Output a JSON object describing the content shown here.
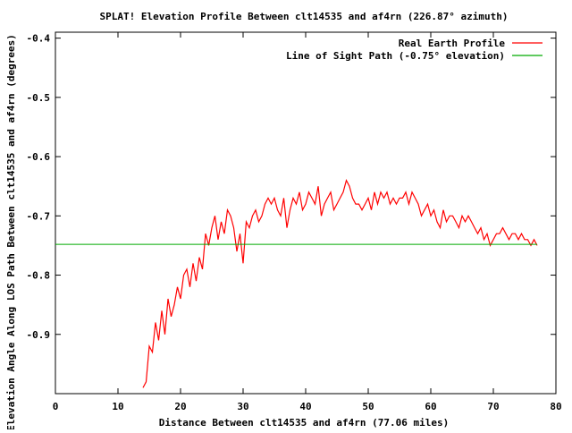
{
  "chart_data": {
    "type": "line",
    "title": "SPLAT! Elevation Profile Between clt14535 and af4rn (226.87° azimuth)",
    "xlabel": "Distance Between clt14535 and af4rn (77.06 miles)",
    "ylabel": "Elevation Angle Along LOS Path Between clt14535 and af4rn (degrees)",
    "xlim": [
      0,
      80
    ],
    "ylim": [
      -1.0,
      -0.39
    ],
    "grid": true,
    "legend_position": "top-right",
    "x_ticks": [
      "0",
      "10",
      "20",
      "30",
      "40",
      "50",
      "60",
      "70",
      "80"
    ],
    "y_ticks": [
      "-0.4",
      "-0.5",
      "-0.6",
      "-0.7",
      "-0.8",
      "-0.9"
    ],
    "y_tick_values": [
      -0.4,
      -0.5,
      -0.6,
      -0.7,
      -0.8,
      -0.9
    ],
    "series": [
      {
        "name": "Real Earth Profile",
        "color": "#ff0000",
        "x": [
          14.0,
          14.5,
          15.0,
          15.5,
          16.0,
          16.5,
          17.0,
          17.5,
          18.0,
          18.5,
          19.0,
          19.5,
          20.0,
          20.5,
          21.0,
          21.5,
          22.0,
          22.5,
          23.0,
          23.5,
          24.0,
          24.5,
          25.0,
          25.5,
          26.0,
          26.5,
          27.0,
          27.5,
          28.0,
          28.5,
          29.0,
          29.5,
          30.0,
          30.5,
          31.0,
          31.5,
          32.0,
          32.5,
          33.0,
          33.5,
          34.0,
          34.5,
          35.0,
          35.5,
          36.0,
          36.5,
          37.0,
          37.5,
          38.0,
          38.5,
          39.0,
          39.5,
          40.0,
          40.5,
          41.0,
          41.5,
          42.0,
          42.5,
          43.0,
          43.5,
          44.0,
          44.5,
          45.0,
          45.5,
          46.0,
          46.5,
          47.0,
          47.5,
          48.0,
          48.5,
          49.0,
          49.5,
          50.0,
          50.5,
          51.0,
          51.5,
          52.0,
          52.5,
          53.0,
          53.5,
          54.0,
          54.5,
          55.0,
          55.5,
          56.0,
          56.5,
          57.0,
          57.5,
          58.0,
          58.5,
          59.0,
          59.5,
          60.0,
          60.5,
          61.0,
          61.5,
          62.0,
          62.5,
          63.0,
          63.5,
          64.0,
          64.5,
          65.0,
          65.5,
          66.0,
          66.5,
          67.0,
          67.5,
          68.0,
          68.5,
          69.0,
          69.5,
          70.0,
          70.5,
          71.0,
          71.5,
          72.0,
          72.5,
          73.0,
          73.5,
          74.0,
          74.5,
          75.0,
          75.5,
          76.0,
          76.5,
          77.0
        ],
        "values": [
          -0.99,
          -0.98,
          -0.92,
          -0.93,
          -0.88,
          -0.91,
          -0.86,
          -0.9,
          -0.84,
          -0.87,
          -0.85,
          -0.82,
          -0.84,
          -0.8,
          -0.79,
          -0.82,
          -0.78,
          -0.81,
          -0.77,
          -0.79,
          -0.73,
          -0.75,
          -0.72,
          -0.7,
          -0.74,
          -0.71,
          -0.73,
          -0.69,
          -0.7,
          -0.72,
          -0.76,
          -0.73,
          -0.78,
          -0.71,
          -0.72,
          -0.7,
          -0.69,
          -0.71,
          -0.7,
          -0.68,
          -0.67,
          -0.68,
          -0.67,
          -0.69,
          -0.7,
          -0.67,
          -0.72,
          -0.69,
          -0.67,
          -0.68,
          -0.66,
          -0.69,
          -0.68,
          -0.66,
          -0.67,
          -0.68,
          -0.65,
          -0.7,
          -0.68,
          -0.67,
          -0.66,
          -0.69,
          -0.68,
          -0.67,
          -0.66,
          -0.64,
          -0.65,
          -0.67,
          -0.68,
          -0.68,
          -0.69,
          -0.68,
          -0.67,
          -0.69,
          -0.66,
          -0.68,
          -0.66,
          -0.67,
          -0.66,
          -0.68,
          -0.67,
          -0.68,
          -0.67,
          -0.67,
          -0.66,
          -0.68,
          -0.66,
          -0.67,
          -0.68,
          -0.7,
          -0.69,
          -0.68,
          -0.7,
          -0.69,
          -0.71,
          -0.72,
          -0.69,
          -0.71,
          -0.7,
          -0.7,
          -0.71,
          -0.72,
          -0.7,
          -0.71,
          -0.7,
          -0.71,
          -0.72,
          -0.73,
          -0.72,
          -0.74,
          -0.73,
          -0.75,
          -0.74,
          -0.73,
          -0.73,
          -0.72,
          -0.73,
          -0.74,
          -0.73,
          -0.73,
          -0.74,
          -0.73,
          -0.74,
          -0.74,
          -0.75,
          -0.74,
          -0.75
        ]
      },
      {
        "name": "Line of Sight Path (-0.75° elevation)",
        "color": "#00aa00",
        "x": [
          0,
          77
        ],
        "values": [
          -0.748,
          -0.748
        ]
      }
    ]
  }
}
